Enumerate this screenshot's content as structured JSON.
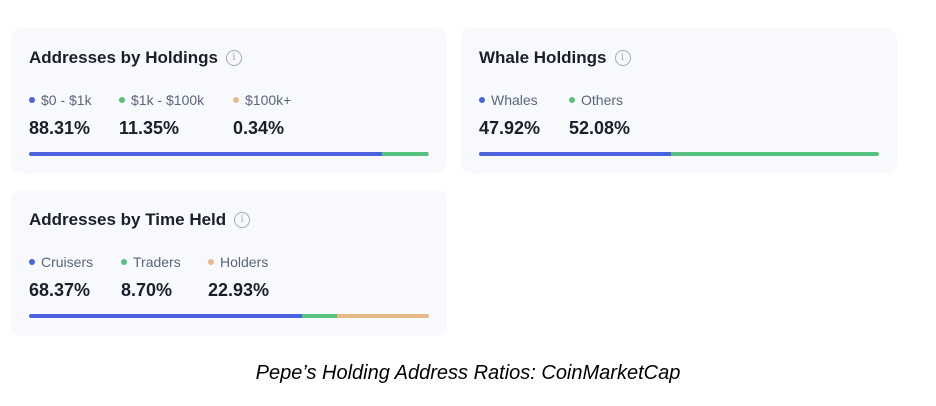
{
  "colors": {
    "blue": "#4a63dd",
    "green": "#56c17f",
    "orange": "#eab98a"
  },
  "cards": {
    "holdings": {
      "title": "Addresses by Holdings",
      "info_icon": "info-icon",
      "items": [
        {
          "label": "$0 - $1k",
          "value": "88.31%",
          "share": 88.31,
          "color": "#4a63dd"
        },
        {
          "label": "$1k - $100k",
          "value": "11.35%",
          "share": 11.35,
          "color": "#56c17f"
        },
        {
          "label": "$100k+",
          "value": "0.34%",
          "share": 0.34,
          "color": "#eab98a"
        }
      ]
    },
    "whale": {
      "title": "Whale Holdings",
      "info_icon": "info-icon",
      "items": [
        {
          "label": "Whales",
          "value": "47.92%",
          "share": 47.92,
          "color": "#4a63dd"
        },
        {
          "label": "Others",
          "value": "52.08%",
          "share": 52.08,
          "color": "#56c17f"
        }
      ]
    },
    "time": {
      "title": "Addresses by Time Held",
      "info_icon": "info-icon",
      "items": [
        {
          "label": "Cruisers",
          "value": "68.37%",
          "share": 68.37,
          "color": "#4a63dd"
        },
        {
          "label": "Traders",
          "value": "8.70%",
          "share": 8.7,
          "color": "#56c17f"
        },
        {
          "label": "Holders",
          "value": "22.93%",
          "share": 22.93,
          "color": "#eab98a"
        }
      ]
    }
  },
  "caption": "Pepe’s Holding Address Ratios: CoinMarketCap"
}
